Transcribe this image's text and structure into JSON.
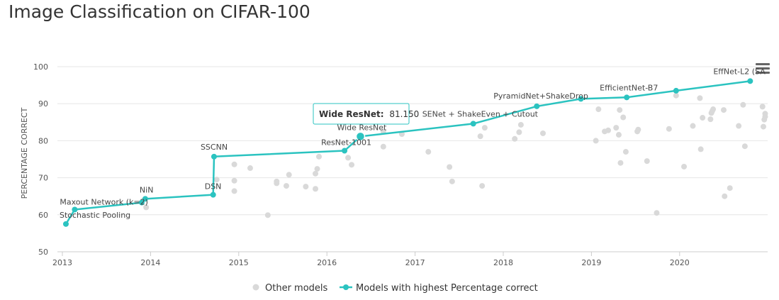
{
  "title": "Image Classification on CIFAR-100",
  "menu_icon": "hamburger-menu-icon",
  "colors": {
    "best": "#2bc3c0",
    "other": "#d9d9d9"
  },
  "tooltip": {
    "model": "Wide ResNet:",
    "value": "81.150"
  },
  "chart_data": {
    "type": "line",
    "title": "Image Classification on CIFAR-100",
    "xlabel": "",
    "ylabel": "PERCENTAGE CORRECT",
    "x_ticks": [
      "2013",
      "2014",
      "2015",
      "2016",
      "2017",
      "2018",
      "2019",
      "2020"
    ],
    "y_ticks": [
      50,
      60,
      70,
      80,
      90,
      100
    ],
    "xlim": [
      2013.0,
      2020.98
    ],
    "ylim": [
      50,
      100
    ],
    "grid": true,
    "legend_position": "bottom",
    "series": [
      {
        "name": "Models with highest Percentage correct",
        "kind": "line",
        "points": [
          {
            "x": 2013.04,
            "y": 57.5,
            "label": "Stochastic Pooling"
          },
          {
            "x": 2013.14,
            "y": 61.4,
            "label": "Maxout Network (k=2)"
          },
          {
            "x": 2013.9,
            "y": 63.3,
            "label": ""
          },
          {
            "x": 2013.94,
            "y": 64.3,
            "label": "NiN"
          },
          {
            "x": 2014.71,
            "y": 65.4,
            "label": "DSN"
          },
          {
            "x": 2014.72,
            "y": 75.7,
            "label": "SSCNN"
          },
          {
            "x": 2016.2,
            "y": 77.3,
            "label": "ResNet-1001"
          },
          {
            "x": 2016.38,
            "y": 81.15,
            "label": "Wide ResNet"
          },
          {
            "x": 2017.66,
            "y": 84.6,
            "label": "SENet + ShakeEven + Cutout"
          },
          {
            "x": 2018.38,
            "y": 89.3,
            "label": "PyramidNet+ShakeDrop"
          },
          {
            "x": 2018.88,
            "y": 91.3,
            "label": ""
          },
          {
            "x": 2019.4,
            "y": 91.7,
            "label": "EfficientNet-B7"
          },
          {
            "x": 2019.96,
            "y": 93.5,
            "label": ""
          },
          {
            "x": 2020.8,
            "y": 96.1,
            "label": "EffNet-L2 (SAM)"
          }
        ]
      },
      {
        "name": "Other models",
        "kind": "scatter",
        "points": [
          [
            2013.95,
            62.0
          ],
          [
            2014.75,
            69.5
          ],
          [
            2014.95,
            73.6
          ],
          [
            2014.95,
            69.2
          ],
          [
            2014.95,
            66.4
          ],
          [
            2015.13,
            72.6
          ],
          [
            2015.33,
            59.9
          ],
          [
            2015.43,
            69.0
          ],
          [
            2015.43,
            68.5
          ],
          [
            2015.54,
            67.8
          ],
          [
            2015.57,
            70.8
          ],
          [
            2015.76,
            67.6
          ],
          [
            2015.87,
            67.0
          ],
          [
            2015.87,
            71.1
          ],
          [
            2015.89,
            72.4
          ],
          [
            2015.91,
            75.7
          ],
          [
            2016.24,
            75.4
          ],
          [
            2016.28,
            73.5
          ],
          [
            2016.64,
            78.4
          ],
          [
            2016.64,
            82.5
          ],
          [
            2016.85,
            81.8
          ],
          [
            2017.15,
            77.0
          ],
          [
            2017.39,
            72.9
          ],
          [
            2017.42,
            69.0
          ],
          [
            2017.74,
            81.2
          ],
          [
            2017.76,
            67.8
          ],
          [
            2017.79,
            83.5
          ],
          [
            2018.13,
            80.5
          ],
          [
            2018.18,
            82.3
          ],
          [
            2018.2,
            84.3
          ],
          [
            2018.45,
            82.0
          ],
          [
            2019.05,
            80.0
          ],
          [
            2019.08,
            88.5
          ],
          [
            2019.15,
            82.5
          ],
          [
            2019.19,
            82.8
          ],
          [
            2019.28,
            83.5
          ],
          [
            2019.31,
            81.6
          ],
          [
            2019.32,
            88.3
          ],
          [
            2019.33,
            74.0
          ],
          [
            2019.36,
            86.3
          ],
          [
            2019.39,
            77.0
          ],
          [
            2019.52,
            82.5
          ],
          [
            2019.53,
            83.0
          ],
          [
            2019.63,
            74.5
          ],
          [
            2019.74,
            60.5
          ],
          [
            2019.88,
            83.2
          ],
          [
            2019.96,
            92.2
          ],
          [
            2020.05,
            73.0
          ],
          [
            2020.15,
            84.0
          ],
          [
            2020.23,
            91.5
          ],
          [
            2020.24,
            77.7
          ],
          [
            2020.26,
            86.2
          ],
          [
            2020.35,
            85.8
          ],
          [
            2020.36,
            87.5
          ],
          [
            2020.37,
            88.0
          ],
          [
            2020.38,
            88.5
          ],
          [
            2020.5,
            88.3
          ],
          [
            2020.51,
            65.0
          ],
          [
            2020.57,
            67.2
          ],
          [
            2020.67,
            84.0
          ],
          [
            2020.72,
            89.7
          ],
          [
            2020.74,
            78.5
          ],
          [
            2020.94,
            89.2
          ],
          [
            2020.95,
            83.8
          ],
          [
            2020.96,
            85.7
          ],
          [
            2020.97,
            86.5
          ],
          [
            2020.97,
            87.3
          ]
        ]
      }
    ]
  }
}
